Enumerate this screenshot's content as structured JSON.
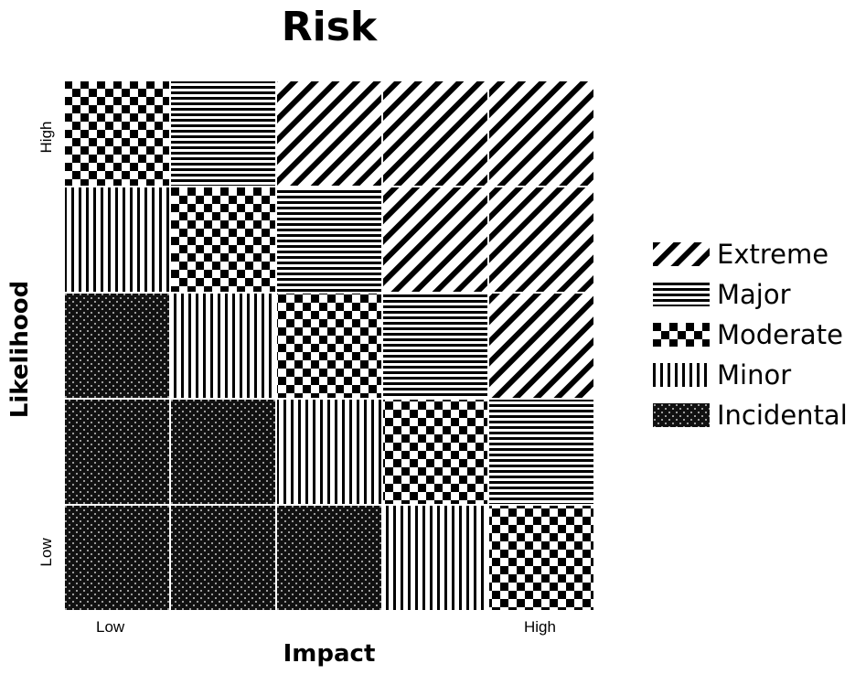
{
  "title": "Risk",
  "y_axis": {
    "label": "Likelihood",
    "high_label": "High",
    "low_label": "Low"
  },
  "x_axis": {
    "label": "Impact",
    "low_label": "Low",
    "high_label": "High"
  },
  "categories": [
    {
      "key": "extreme",
      "label": "Extreme",
      "pattern": "diagonal-stripes"
    },
    {
      "key": "major",
      "label": "Major",
      "pattern": "horizontal-stripes"
    },
    {
      "key": "moderate",
      "label": "Moderate",
      "pattern": "checkerboard"
    },
    {
      "key": "minor",
      "label": "Minor",
      "pattern": "vertical-stripes"
    },
    {
      "key": "incidental",
      "label": "Incidental",
      "pattern": "dotted-dark"
    }
  ],
  "matrix": [
    [
      "moderate",
      "major",
      "extreme",
      "extreme",
      "extreme"
    ],
    [
      "minor",
      "moderate",
      "major",
      "extreme",
      "extreme"
    ],
    [
      "incidental",
      "minor",
      "moderate",
      "major",
      "extreme"
    ],
    [
      "incidental",
      "incidental",
      "minor",
      "moderate",
      "major"
    ],
    [
      "incidental",
      "incidental",
      "incidental",
      "minor",
      "moderate"
    ]
  ],
  "colors": {
    "ink": "#000000",
    "paper": "#ffffff"
  }
}
